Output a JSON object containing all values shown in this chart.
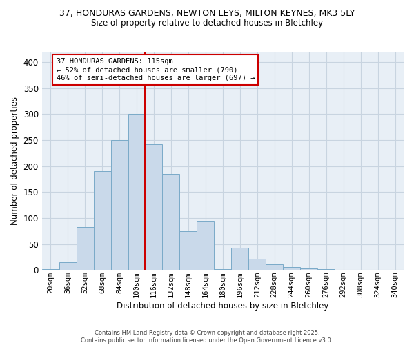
{
  "title_line1": "37, HONDURAS GARDENS, NEWTON LEYS, MILTON KEYNES, MK3 5LY",
  "title_line2": "Size of property relative to detached houses in Bletchley",
  "xlabel": "Distribution of detached houses by size in Bletchley",
  "ylabel": "Number of detached properties",
  "bin_labels": [
    "20sqm",
    "36sqm",
    "52sqm",
    "68sqm",
    "84sqm",
    "100sqm",
    "116sqm",
    "132sqm",
    "148sqm",
    "164sqm",
    "180sqm",
    "196sqm",
    "212sqm",
    "228sqm",
    "244sqm",
    "260sqm",
    "276sqm",
    "292sqm",
    "308sqm",
    "324sqm",
    "340sqm"
  ],
  "bar_values": [
    2,
    15,
    82,
    190,
    250,
    300,
    242,
    185,
    75,
    93,
    2,
    43,
    22,
    11,
    5,
    3,
    1,
    0,
    0,
    0,
    0
  ],
  "bar_color": "#c9d9ea",
  "bar_edge_color": "#7aaac8",
  "vline_x": 6,
  "vline_color": "#cc0000",
  "annotation_line1": "37 HONDURAS GARDENS: 115sqm",
  "annotation_line2": "← 52% of detached houses are smaller (790)",
  "annotation_line3": "46% of semi-detached houses are larger (697) →",
  "annotation_box_color": "#cc0000",
  "ylim": [
    0,
    420
  ],
  "yticks": [
    0,
    50,
    100,
    150,
    200,
    250,
    300,
    350,
    400
  ],
  "grid_color": "#c8d4e0",
  "background_color": "#ffffff",
  "plot_bg_color": "#e8eff6",
  "footer_line1": "Contains HM Land Registry data © Crown copyright and database right 2025.",
  "footer_line2": "Contains public sector information licensed under the Open Government Licence v3.0."
}
